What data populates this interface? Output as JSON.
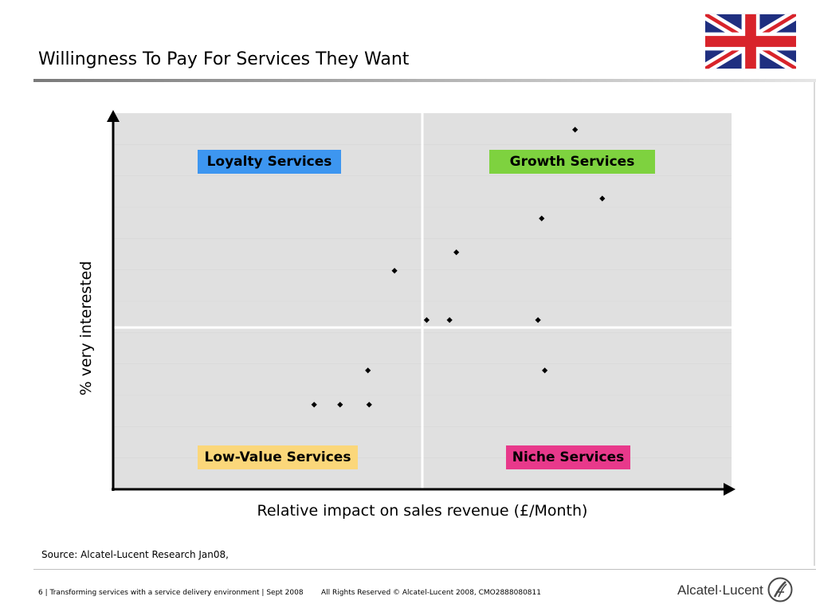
{
  "slide": {
    "title": "Willingness To Pay For Services They Want",
    "source": "Source: Alcatel-Lucent Research Jan08,",
    "footer_left": "6 | Transforming services with a service delivery environment | Sept 2008",
    "footer_mid": "All Rights Reserved © Alcatel-Lucent 2008, CMO2888080811",
    "brand": "Alcatel·Lucent"
  },
  "colors": {
    "loyalty": "#3d96f0",
    "growth": "#7ed23f",
    "low_value": "#fbd77a",
    "niche": "#e8398b",
    "plot_bg": "#e0e0e0",
    "marker": "#000000"
  },
  "icons": {
    "flag": "uk-flag-icon",
    "brand_logo": "alcatel-lucent-logo-icon"
  },
  "chart_data": {
    "type": "scatter",
    "title": "",
    "xlabel": "Relative impact on sales revenue (£/Month)",
    "ylabel": "% very interested",
    "xlim": [
      0,
      100
    ],
    "ylim": [
      0,
      100
    ],
    "grid": false,
    "dividers": {
      "x": 50,
      "y": 43
    },
    "quadrants": [
      {
        "label": "Loyalty Services",
        "color": "#3d96f0",
        "position": "top-left"
      },
      {
        "label": "Growth Services",
        "color": "#7ed23f",
        "position": "top-right"
      },
      {
        "label": "Low-Value Services",
        "color": "#fbd77a",
        "position": "bottom-left"
      },
      {
        "label": "Niche Services",
        "color": "#e8398b",
        "position": "bottom-right"
      }
    ],
    "series": [
      {
        "points": [
          {
            "x": 74.7,
            "y": 95.6
          },
          {
            "x": 79.1,
            "y": 77.3
          },
          {
            "x": 69.3,
            "y": 72.0
          },
          {
            "x": 55.5,
            "y": 63.0
          },
          {
            "x": 45.5,
            "y": 58.1
          },
          {
            "x": 50.7,
            "y": 45.0
          },
          {
            "x": 54.4,
            "y": 45.0
          },
          {
            "x": 68.7,
            "y": 45.0
          },
          {
            "x": 41.2,
            "y": 31.6
          },
          {
            "x": 69.8,
            "y": 31.6
          },
          {
            "x": 32.5,
            "y": 22.5
          },
          {
            "x": 36.7,
            "y": 22.5
          },
          {
            "x": 41.4,
            "y": 22.5
          }
        ]
      }
    ]
  }
}
